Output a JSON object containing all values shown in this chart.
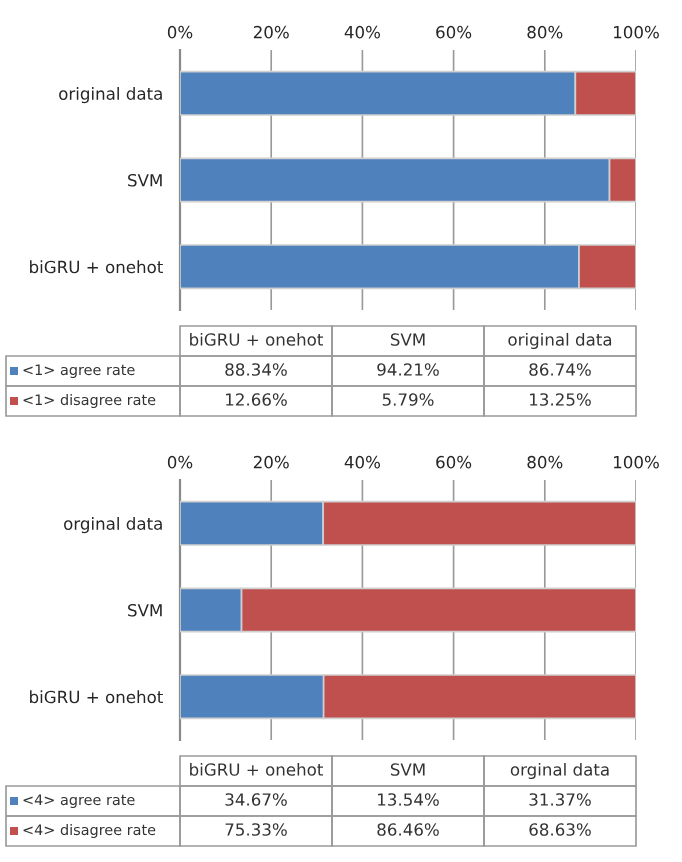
{
  "chart_data": [
    {
      "type": "bar",
      "orientation": "horizontal",
      "stacked": true,
      "categories": [
        "original data",
        "SVM",
        "biGRU + onehot"
      ],
      "series": [
        {
          "name": "<1> agree rate",
          "color": "#4f81bd",
          "values": [
            86.7,
            94.2,
            87.5
          ]
        },
        {
          "name": "<1> disagree rate",
          "color": "#c0504d",
          "values": [
            13.3,
            5.8,
            12.5
          ]
        }
      ],
      "legend": "bottom",
      "annotations": [
        "88.34%",
        "94.21%",
        "86.74%",
        "12.66%",
        "5.79%",
        "13.25%"
      ],
      "xlim": [
        0,
        100
      ],
      "xticks": [
        {
          "value": 0,
          "label": "0%"
        },
        {
          "value": 20,
          "label": "20%"
        },
        {
          "value": 40,
          "label": "40%"
        },
        {
          "value": 60,
          "label": "60%"
        },
        {
          "value": 80,
          "label": "80%"
        },
        {
          "value": 100,
          "label": "100%"
        }
      ],
      "grid": "x"
    },
    {
      "type": "bar",
      "orientation": "horizontal",
      "stacked": true,
      "categories": [
        "orginal data",
        "SVM",
        "biGRU + onehot"
      ],
      "series": [
        {
          "name": "<4> agree rate",
          "color": "#4f81bd",
          "values": [
            31.4,
            13.5,
            31.5
          ]
        },
        {
          "name": "<4> disagree rate",
          "color": "#c0504d",
          "values": [
            68.6,
            86.5,
            68.5
          ]
        }
      ],
      "legend": "bottom",
      "annotations": [
        "34.67%",
        "13.54%",
        "31.37%",
        "75.33%",
        "86.46%",
        "68.63%"
      ],
      "xlim": [
        0,
        100
      ],
      "xticks": [
        {
          "value": 0,
          "label": "0%"
        },
        {
          "value": 20,
          "label": "20%"
        },
        {
          "value": 40,
          "label": "40%"
        },
        {
          "value": 60,
          "label": "60%"
        },
        {
          "value": 80,
          "label": "80%"
        },
        {
          "value": 100,
          "label": "100%"
        }
      ],
      "grid": "x"
    }
  ]
}
